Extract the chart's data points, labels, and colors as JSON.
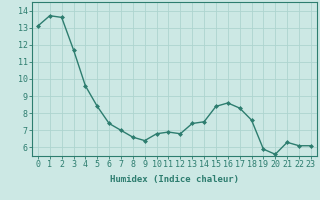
{
  "x": [
    0,
    1,
    2,
    3,
    4,
    5,
    6,
    7,
    8,
    9,
    10,
    11,
    12,
    13,
    14,
    15,
    16,
    17,
    18,
    19,
    20,
    21,
    22,
    23
  ],
  "y": [
    13.1,
    13.7,
    13.6,
    11.7,
    9.6,
    8.4,
    7.4,
    7.0,
    6.6,
    6.4,
    6.8,
    6.9,
    6.8,
    7.4,
    7.5,
    8.4,
    8.6,
    8.3,
    7.6,
    5.9,
    5.6,
    6.3,
    6.1,
    6.1
  ],
  "line_color": "#2d7d6f",
  "marker": "D",
  "marker_size": 2.0,
  "line_width": 1.0,
  "bg_color": "#cce8e4",
  "grid_color": "#aed4cf",
  "xlabel": "Humidex (Indice chaleur)",
  "xlabel_fontsize": 6.5,
  "tick_fontsize": 6,
  "ylim": [
    5.5,
    14.5
  ],
  "yticks": [
    6,
    7,
    8,
    9,
    10,
    11,
    12,
    13,
    14
  ],
  "xlim": [
    -0.5,
    23.5
  ],
  "xticks": [
    0,
    1,
    2,
    3,
    4,
    5,
    6,
    7,
    8,
    9,
    10,
    11,
    12,
    13,
    14,
    15,
    16,
    17,
    18,
    19,
    20,
    21,
    22,
    23
  ]
}
